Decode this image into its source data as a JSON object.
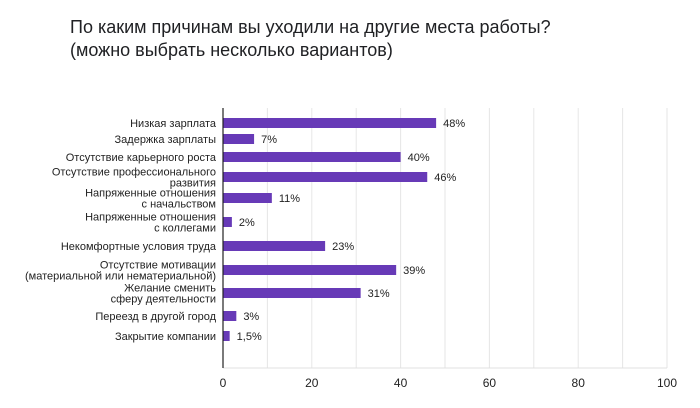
{
  "chart_data": {
    "type": "bar",
    "orientation": "horizontal",
    "title_lines": [
      "По каким причинам вы уходили на другие места работы?",
      "(можно выбрать несколько вариантов)"
    ],
    "categories": [
      "Низкая зарплата",
      "Задержка зарплаты",
      "Отсутствие карьерного роста",
      "Отсутствие профессионального\nразвития",
      "Напряженные отношения\nс начальством",
      "Напряженные отношения\nс коллегами",
      "Некомфортные условия труда",
      "Отсутствие мотивации\n(материальной или нематериальной)",
      "Желание сменить\nсферу деятельности",
      "Переезд в другой город",
      "Закрытие компании"
    ],
    "values": [
      48,
      7,
      40,
      46,
      11,
      2,
      23,
      39,
      31,
      3,
      1.5
    ],
    "data_labels": [
      "48%",
      "7%",
      "40%",
      "46%",
      "11%",
      "2%",
      "23%",
      "39%",
      "31%",
      "3%",
      "1,5%"
    ],
    "xlim": [
      0,
      100
    ],
    "xticks": [
      "0",
      "20",
      "40",
      "60",
      "80",
      "100"
    ],
    "grid": true,
    "legend": "none",
    "bar_color": "#673ab7"
  }
}
